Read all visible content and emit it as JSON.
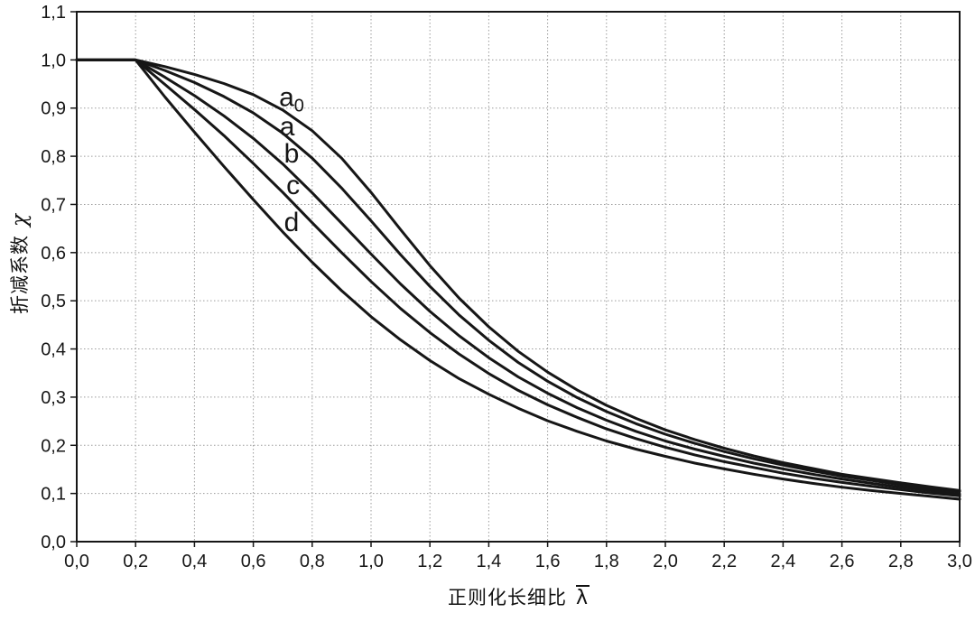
{
  "chart_data": {
    "type": "line",
    "title": "",
    "xlabel": "正则化长细比",
    "xlabel_symbol": "λ",
    "xlabel_symbol_style": "overbar",
    "ylabel": "折减系数",
    "ylabel_symbol": "χ",
    "xlim": [
      0.0,
      3.0
    ],
    "ylim": [
      0.0,
      1.1
    ],
    "grid": "on, light dotted, x every 0.2, y every 0.1",
    "legend_position": "inline labels next to curves",
    "x_ticks": [
      0.0,
      0.2,
      0.4,
      0.6,
      0.8,
      1.0,
      1.2,
      1.4,
      1.6,
      1.8,
      2.0,
      2.2,
      2.4,
      2.6,
      2.8,
      3.0
    ],
    "x_tick_labels": [
      "0,0",
      "0,2",
      "0,4",
      "0,6",
      "0,8",
      "1,0",
      "1,2",
      "1,4",
      "1,6",
      "1,8",
      "2,0",
      "2,2",
      "2,4",
      "2,6",
      "2,8",
      "3,0"
    ],
    "y_ticks": [
      0.0,
      0.1,
      0.2,
      0.3,
      0.4,
      0.5,
      0.6,
      0.7,
      0.8,
      0.9,
      1.0,
      1.1
    ],
    "y_tick_labels": [
      "0,0",
      "0,1",
      "0,2",
      "0,3",
      "0,4",
      "0,5",
      "0,6",
      "0,7",
      "0,8",
      "0,9",
      "1,0",
      "1,1"
    ],
    "x": [
      0.0,
      0.1,
      0.2,
      0.3,
      0.4,
      0.5,
      0.6,
      0.7,
      0.8,
      0.9,
      1.0,
      1.1,
      1.2,
      1.3,
      1.4,
      1.5,
      1.6,
      1.7,
      1.8,
      1.9,
      2.0,
      2.1,
      2.2,
      2.3,
      2.4,
      2.5,
      2.6,
      2.7,
      2.8,
      2.9,
      3.0
    ],
    "series": [
      {
        "name": "a0",
        "label": {
          "base": "a",
          "sub": "0"
        },
        "label_pos": {
          "x": 0.73,
          "y": 0.923
        },
        "values": [
          1.0,
          1.0,
          1.0,
          0.986,
          0.97,
          0.951,
          0.928,
          0.896,
          0.853,
          0.796,
          0.725,
          0.648,
          0.573,
          0.505,
          0.446,
          0.395,
          0.352,
          0.315,
          0.283,
          0.256,
          0.232,
          0.212,
          0.194,
          0.178,
          0.164,
          0.152,
          0.14,
          0.131,
          0.122,
          0.114,
          0.106
        ]
      },
      {
        "name": "a",
        "label": {
          "base": "a",
          "sub": ""
        },
        "label_pos": {
          "x": 0.715,
          "y": 0.862
        },
        "values": [
          1.0,
          1.0,
          1.0,
          0.978,
          0.953,
          0.924,
          0.89,
          0.848,
          0.796,
          0.734,
          0.666,
          0.596,
          0.53,
          0.47,
          0.418,
          0.372,
          0.333,
          0.299,
          0.27,
          0.245,
          0.223,
          0.204,
          0.187,
          0.172,
          0.159,
          0.147,
          0.136,
          0.127,
          0.118,
          0.111,
          0.104
        ]
      },
      {
        "name": "b",
        "label": {
          "base": "b",
          "sub": ""
        },
        "label_pos": {
          "x": 0.73,
          "y": 0.806
        },
        "values": [
          1.0,
          1.0,
          1.0,
          0.964,
          0.926,
          0.884,
          0.837,
          0.784,
          0.724,
          0.661,
          0.597,
          0.535,
          0.478,
          0.427,
          0.382,
          0.342,
          0.308,
          0.278,
          0.252,
          0.229,
          0.209,
          0.192,
          0.177,
          0.163,
          0.151,
          0.14,
          0.13,
          0.121,
          0.113,
          0.106,
          0.099
        ]
      },
      {
        "name": "c",
        "label": {
          "base": "c",
          "sub": ""
        },
        "label_pos": {
          "x": 0.735,
          "y": 0.74
        },
        "values": [
          1.0,
          1.0,
          1.0,
          0.949,
          0.897,
          0.843,
          0.785,
          0.725,
          0.662,
          0.6,
          0.54,
          0.484,
          0.434,
          0.389,
          0.349,
          0.314,
          0.284,
          0.258,
          0.234,
          0.214,
          0.196,
          0.18,
          0.166,
          0.154,
          0.142,
          0.132,
          0.123,
          0.115,
          0.108,
          0.101,
          0.095
        ]
      },
      {
        "name": "d",
        "label": {
          "base": "d",
          "sub": ""
        },
        "label_pos": {
          "x": 0.73,
          "y": 0.663
        },
        "values": [
          1.0,
          1.0,
          1.0,
          0.923,
          0.85,
          0.779,
          0.71,
          0.643,
          0.58,
          0.521,
          0.467,
          0.419,
          0.376,
          0.338,
          0.306,
          0.277,
          0.251,
          0.229,
          0.209,
          0.192,
          0.177,
          0.163,
          0.151,
          0.14,
          0.13,
          0.121,
          0.113,
          0.106,
          0.1,
          0.094,
          0.088
        ]
      }
    ],
    "colors": {
      "curve": "#161616",
      "grid": "#9b9b9b",
      "axis": "#161616",
      "text": "#161616",
      "background": "#ffffff"
    }
  }
}
